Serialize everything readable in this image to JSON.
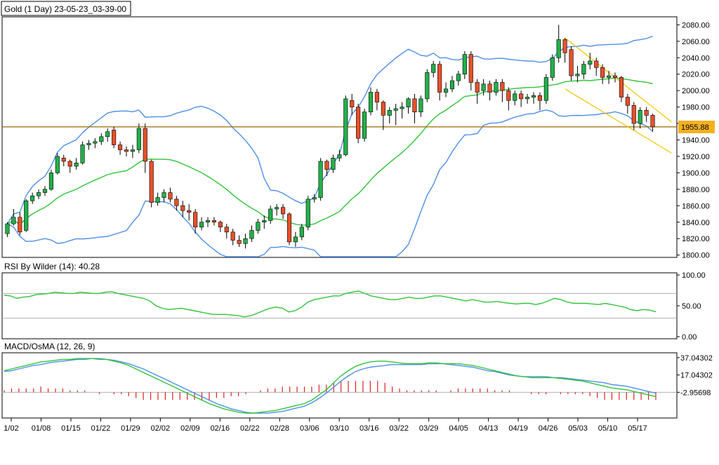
{
  "chart_data": [
    {
      "type": "candlestick",
      "title": "Gold (1 Day) 23-05-23_03-39-00",
      "y_ticks": [
        "2080.00",
        "2060.00",
        "2040.00",
        "2020.00",
        "2000.00",
        "1980.00",
        "1960.00",
        "1940.00",
        "1920.00",
        "1900.00",
        "1880.00",
        "1860.00",
        "1840.00",
        "1820.00",
        "1800.00"
      ],
      "ylim": [
        1798,
        2088
      ],
      "current_price_label": "1955.88",
      "current_price": 1955.88,
      "x_ticks": [
        "1/02",
        "01/08",
        "01/15",
        "01/22",
        "01/29",
        "02/02",
        "02/09",
        "02/16",
        "02/22",
        "02/28",
        "03/06",
        "03/10",
        "03/16",
        "03/22",
        "03/29",
        "04/05",
        "04/13",
        "04/19",
        "04/26",
        "05/03",
        "05/10",
        "05/17"
      ],
      "colors": {
        "up": "#22b04a",
        "down": "#e8502a",
        "wick": "#000000",
        "middle_band": "#2fc43a",
        "outer_band": "#4f8fe8",
        "channel": "#f5c400",
        "price_line": "#9c6a00"
      },
      "candles": [
        [
          1826,
          1838,
          1822,
          1840
        ],
        [
          1838,
          1846,
          1836,
          1856
        ],
        [
          1846,
          1828,
          1824,
          1852
        ],
        [
          1830,
          1866,
          1828,
          1868
        ],
        [
          1866,
          1872,
          1862,
          1876
        ],
        [
          1872,
          1876,
          1868,
          1880
        ],
        [
          1876,
          1880,
          1872,
          1884
        ],
        [
          1880,
          1900,
          1878,
          1904
        ],
        [
          1900,
          1920,
          1898,
          1924
        ],
        [
          1918,
          1914,
          1908,
          1922
        ],
        [
          1914,
          1908,
          1900,
          1916
        ],
        [
          1908,
          1912,
          1904,
          1918
        ],
        [
          1912,
          1934,
          1910,
          1938
        ],
        [
          1934,
          1936,
          1928,
          1940
        ],
        [
          1936,
          1938,
          1930,
          1942
        ],
        [
          1938,
          1944,
          1934,
          1948
        ],
        [
          1944,
          1950,
          1938,
          1954
        ],
        [
          1952,
          1934,
          1930,
          1956
        ],
        [
          1934,
          1928,
          1922,
          1938
        ],
        [
          1928,
          1926,
          1920,
          1932
        ],
        [
          1926,
          1928,
          1918,
          1934
        ],
        [
          1928,
          1954,
          1924,
          1960
        ],
        [
          1954,
          1914,
          1900,
          1960
        ],
        [
          1914,
          1864,
          1858,
          1916
        ],
        [
          1864,
          1870,
          1860,
          1876
        ],
        [
          1870,
          1876,
          1864,
          1880
        ],
        [
          1876,
          1868,
          1864,
          1882
        ],
        [
          1868,
          1860,
          1854,
          1872
        ],
        [
          1860,
          1854,
          1846,
          1866
        ],
        [
          1854,
          1852,
          1842,
          1862
        ],
        [
          1852,
          1834,
          1826,
          1856
        ],
        [
          1834,
          1840,
          1830,
          1846
        ],
        [
          1840,
          1842,
          1834,
          1846
        ],
        [
          1842,
          1840,
          1836,
          1846
        ],
        [
          1840,
          1834,
          1828,
          1842
        ],
        [
          1834,
          1828,
          1820,
          1838
        ],
        [
          1828,
          1818,
          1812,
          1832
        ],
        [
          1818,
          1814,
          1810,
          1824
        ],
        [
          1814,
          1820,
          1808,
          1826
        ],
        [
          1820,
          1830,
          1816,
          1836
        ],
        [
          1830,
          1840,
          1826,
          1844
        ],
        [
          1840,
          1842,
          1832,
          1848
        ],
        [
          1842,
          1856,
          1838,
          1860
        ],
        [
          1856,
          1858,
          1848,
          1862
        ],
        [
          1858,
          1850,
          1844,
          1862
        ],
        [
          1850,
          1816,
          1812,
          1852
        ],
        [
          1816,
          1822,
          1810,
          1828
        ],
        [
          1822,
          1834,
          1818,
          1838
        ],
        [
          1834,
          1868,
          1830,
          1872
        ],
        [
          1868,
          1870,
          1864,
          1874
        ],
        [
          1870,
          1914,
          1866,
          1918
        ],
        [
          1914,
          1904,
          1896,
          1916
        ],
        [
          1904,
          1918,
          1900,
          1922
        ],
        [
          1918,
          1922,
          1914,
          1928
        ],
        [
          1922,
          1990,
          1920,
          1994
        ],
        [
          1988,
          1980,
          1970,
          1996
        ],
        [
          1980,
          1942,
          1936,
          1984
        ],
        [
          1942,
          1974,
          1938,
          1978
        ],
        [
          1974,
          1998,
          1970,
          2004
        ],
        [
          1998,
          1986,
          1976,
          2002
        ],
        [
          1986,
          1970,
          1952,
          1988
        ],
        [
          1970,
          1976,
          1960,
          1980
        ],
        [
          1976,
          1978,
          1958,
          1984
        ],
        [
          1978,
          1980,
          1966,
          1986
        ],
        [
          1980,
          1990,
          1972,
          1992
        ],
        [
          1990,
          1974,
          1960,
          1996
        ],
        [
          1974,
          1990,
          1968,
          1994
        ],
        [
          1990,
          2022,
          1986,
          2026
        ],
        [
          2022,
          2032,
          2016,
          2036
        ],
        [
          2032,
          1998,
          1988,
          2036
        ],
        [
          1998,
          2002,
          1992,
          2010
        ],
        [
          2002,
          2012,
          1998,
          2018
        ],
        [
          2012,
          2020,
          2006,
          2024
        ],
        [
          2020,
          2044,
          2014,
          2048
        ],
        [
          2044,
          2010,
          2000,
          2048
        ],
        [
          2010,
          1998,
          1984,
          2014
        ],
        [
          2000,
          2008,
          1994,
          2014
        ],
        [
          2008,
          1998,
          1988,
          2012
        ],
        [
          1998,
          2010,
          1994,
          2014
        ],
        [
          2010,
          2000,
          1986,
          2014
        ],
        [
          2000,
          1988,
          1976,
          2004
        ],
        [
          1988,
          1996,
          1982,
          2000
        ],
        [
          1996,
          1990,
          1980,
          2000
        ],
        [
          1990,
          1992,
          1984,
          1996
        ],
        [
          1992,
          1994,
          1984,
          1998
        ],
        [
          1994,
          1988,
          1976,
          1998
        ],
        [
          1988,
          2016,
          1984,
          2020
        ],
        [
          2016,
          2040,
          2012,
          2044
        ],
        [
          2040,
          2062,
          2034,
          2080
        ],
        [
          2062,
          2046,
          2034,
          2064
        ],
        [
          2050,
          2018,
          2012,
          2054
        ],
        [
          2018,
          2020,
          2010,
          2030
        ],
        [
          2020,
          2032,
          2014,
          2036
        ],
        [
          2032,
          2036,
          2026,
          2046
        ],
        [
          2036,
          2028,
          2018,
          2040
        ],
        [
          2028,
          2016,
          2008,
          2032
        ],
        [
          2016,
          2018,
          2008,
          2024
        ],
        [
          2018,
          2016,
          2010,
          2022
        ],
        [
          2016,
          1992,
          1986,
          2018
        ],
        [
          1992,
          1982,
          1972,
          1996
        ],
        [
          1982,
          1960,
          1952,
          1986
        ],
        [
          1960,
          1976,
          1954,
          1980
        ],
        [
          1976,
          1970,
          1962,
          1980
        ],
        [
          1970,
          1955.88,
          1950,
          1972
        ]
      ]
    },
    {
      "type": "line",
      "title": "RSI By Wilder (14): 40.28",
      "y_ticks": [
        "100.00",
        "50.00",
        "0.00"
      ],
      "ylim": [
        0,
        100
      ],
      "levels": [
        70,
        30
      ],
      "colors": {
        "line": "#2fc43a",
        "level": "#b0b0b0"
      },
      "values": [
        67,
        66,
        62,
        64,
        65,
        68,
        69,
        70,
        72,
        71,
        70,
        70,
        72,
        71,
        70,
        70,
        72,
        73,
        70,
        68,
        66,
        64,
        62,
        58,
        50,
        46,
        44,
        45,
        46,
        44,
        42,
        40,
        38,
        36,
        36,
        36,
        35,
        34,
        32,
        34,
        38,
        42,
        46,
        48,
        46,
        40,
        42,
        48,
        56,
        60,
        62,
        64,
        66,
        66,
        70,
        72,
        74,
        70,
        66,
        64,
        62,
        60,
        60,
        62,
        64,
        62,
        62,
        64,
        66,
        66,
        64,
        62,
        60,
        58,
        60,
        58,
        56,
        56,
        57,
        55,
        54,
        53,
        54,
        54,
        52,
        54,
        58,
        62,
        60,
        56,
        54,
        54,
        54,
        53,
        52,
        54,
        52,
        50,
        48,
        44,
        42,
        44,
        43,
        40.28
      ]
    },
    {
      "type": "line",
      "title": "MACD/OsMA (12, 26, 9)",
      "y_ticks": [
        "37.04302",
        "17.04302",
        "-2.95698"
      ],
      "ylim": [
        -31,
        41
      ],
      "colors": {
        "macd": "#2fc43a",
        "signal": "#4f8fe8",
        "osma": "#e02020",
        "zero": "#b0b0b0"
      },
      "macd": [
        22,
        24,
        26,
        28,
        30,
        32,
        33,
        34,
        35,
        35,
        36,
        36,
        36,
        35,
        35,
        33,
        31,
        28,
        24,
        20,
        16,
        12,
        8,
        4,
        0,
        -4,
        -8,
        -12,
        -16,
        -19,
        -22,
        -24,
        -26,
        -27,
        -27,
        -26,
        -25,
        -24,
        -22,
        -20,
        -18,
        -16,
        -12,
        -6,
        0,
        8,
        16,
        22,
        27,
        30,
        32,
        33,
        33,
        32,
        31,
        30,
        30,
        30,
        31,
        31,
        30,
        30,
        30,
        29,
        28,
        26,
        24,
        22,
        20,
        18,
        16,
        15,
        14,
        14,
        14,
        14,
        13,
        12,
        11,
        10,
        8,
        6,
        4,
        2,
        1,
        0,
        -2,
        -4,
        -6,
        -8
      ],
      "signal": [
        21,
        22,
        24,
        26,
        28,
        29,
        31,
        32,
        33,
        34,
        35,
        35,
        36,
        36,
        35,
        34,
        32,
        30,
        27,
        24,
        20,
        16,
        12,
        8,
        4,
        0,
        -4,
        -8,
        -12,
        -16,
        -19,
        -22,
        -24,
        -26,
        -27,
        -27,
        -27,
        -26,
        -25,
        -23,
        -21,
        -19,
        -15,
        -10,
        -4,
        3,
        10,
        16,
        21,
        24,
        26,
        27,
        28,
        29,
        29,
        29,
        29,
        29,
        30,
        30,
        30,
        29,
        28,
        27,
        26,
        24,
        22,
        21,
        19,
        17,
        16,
        15,
        15,
        15,
        15,
        14,
        14,
        13,
        12,
        11,
        10,
        9,
        8,
        6,
        5,
        4,
        2,
        0,
        -2,
        -4
      ],
      "osma": [
        1,
        2,
        2,
        2,
        2,
        3,
        2,
        2,
        2,
        1,
        1,
        1,
        0,
        -1,
        0,
        -1,
        -1,
        -2,
        -3,
        -4,
        -4,
        -4,
        -4,
        -4,
        -4,
        -4,
        -4,
        -4,
        -4,
        -3,
        -3,
        -2,
        -2,
        -1,
        0,
        1,
        2,
        2,
        3,
        3,
        3,
        3,
        3,
        4,
        4,
        5,
        6,
        6,
        6,
        6,
        6,
        6,
        5,
        3,
        2,
        1,
        1,
        1,
        1,
        1,
        0,
        1,
        2,
        2,
        2,
        2,
        2,
        1,
        1,
        1,
        0,
        0,
        -1,
        -1,
        -1,
        0,
        -1,
        -1,
        -1,
        -1,
        -2,
        -3,
        -4,
        -4,
        -4,
        -4,
        -4,
        -4,
        -4,
        -4
      ]
    }
  ]
}
